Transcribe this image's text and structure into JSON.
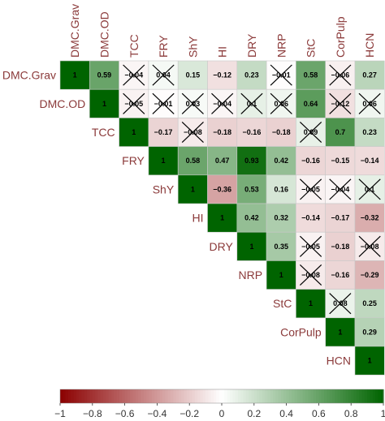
{
  "chart_data": {
    "type": "heatmap",
    "title": "",
    "variables": [
      "DMC.Grav",
      "DMC.OD",
      "TCC",
      "FRY",
      "ShY",
      "HI",
      "DRY",
      "NRP",
      "StC",
      "CorPulp",
      "HCN"
    ],
    "matrix": [
      [
        1,
        0.59,
        -0.04,
        0.04,
        0.15,
        -0.12,
        0.23,
        -0.01,
        0.58,
        -0.06,
        0.27
      ],
      [
        null,
        1,
        -0.05,
        -0.01,
        0.03,
        -0.04,
        0.1,
        0.06,
        0.64,
        -0.12,
        0.06
      ],
      [
        null,
        null,
        1,
        -0.17,
        -0.08,
        -0.18,
        -0.16,
        -0.18,
        0.09,
        0.7,
        0.23
      ],
      [
        null,
        null,
        null,
        1,
        0.58,
        0.47,
        0.93,
        0.42,
        -0.16,
        -0.15,
        -0.14
      ],
      [
        null,
        null,
        null,
        null,
        1,
        -0.36,
        0.53,
        0.16,
        -0.05,
        -0.04,
        0.1
      ],
      [
        null,
        null,
        null,
        null,
        null,
        1,
        0.42,
        0.32,
        -0.14,
        -0.17,
        -0.32
      ],
      [
        null,
        null,
        null,
        null,
        null,
        null,
        1,
        0.35,
        -0.05,
        -0.18,
        -0.08
      ],
      [
        null,
        null,
        null,
        null,
        null,
        null,
        null,
        1,
        -0.08,
        -0.16,
        -0.29
      ],
      [
        null,
        null,
        null,
        null,
        null,
        null,
        null,
        null,
        1,
        0.08,
        0.25
      ],
      [
        null,
        null,
        null,
        null,
        null,
        null,
        null,
        null,
        null,
        1,
        0.29
      ],
      [
        null,
        null,
        null,
        null,
        null,
        null,
        null,
        null,
        null,
        null,
        1
      ]
    ],
    "crossed": [
      [
        0,
        2
      ],
      [
        0,
        3
      ],
      [
        0,
        7
      ],
      [
        0,
        9
      ],
      [
        1,
        2
      ],
      [
        1,
        3
      ],
      [
        1,
        4
      ],
      [
        1,
        5
      ],
      [
        1,
        6
      ],
      [
        1,
        7
      ],
      [
        1,
        9
      ],
      [
        1,
        10
      ],
      [
        2,
        4
      ],
      [
        2,
        8
      ],
      [
        4,
        8
      ],
      [
        4,
        9
      ],
      [
        4,
        10
      ],
      [
        6,
        8
      ],
      [
        6,
        10
      ],
      [
        7,
        8
      ],
      [
        8,
        9
      ]
    ],
    "color_scale": {
      "min": -1,
      "max": 1,
      "low_color": "#8b0000",
      "mid_color": "#ffffff",
      "high_color": "#006400",
      "ticks": [
        "−1",
        "−0.8",
        "−0.6",
        "−0.4",
        "−0.2",
        "0",
        "0.2",
        "0.4",
        "0.6",
        "0.8",
        "1"
      ]
    },
    "legend_position": "bottom"
  }
}
